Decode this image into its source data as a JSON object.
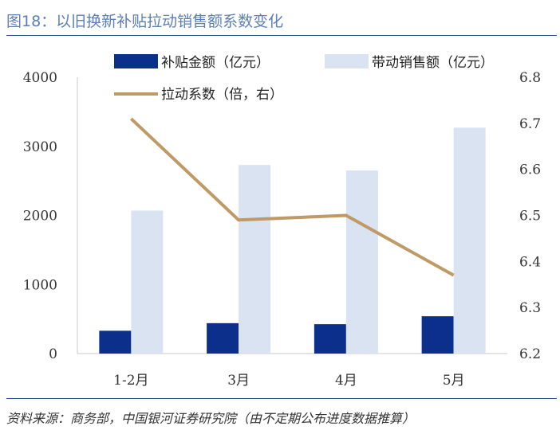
{
  "figure_title": "图18：以旧换新补贴拉动销售额系数变化",
  "source": "资料来源：商务部，中国银河证券研究院（由不定期公布进度数据推算）",
  "colors": {
    "subsidy": "#0c2f8c",
    "sales": "#dae3f2",
    "coefficient": "#bf9a67",
    "title": "#5b7fb8",
    "rule": "#2c4f8a"
  },
  "chart_data": {
    "type": "bar",
    "categories": [
      "1-2月",
      "3月",
      "4月",
      "5月"
    ],
    "series": [
      {
        "name": "补贴金额（亿元）",
        "type": "bar",
        "axis": "left",
        "values": [
          330,
          440,
          425,
          540
        ]
      },
      {
        "name": "带动销售额（亿元）",
        "type": "bar",
        "axis": "left",
        "values": [
          2070,
          2730,
          2650,
          3270
        ]
      },
      {
        "name": "拉动系数（倍，右）",
        "type": "line",
        "axis": "right",
        "values": [
          6.71,
          6.49,
          6.5,
          6.37
        ]
      }
    ],
    "y_left": {
      "min": 0,
      "max": 4000,
      "ticks": [
        0,
        1000,
        2000,
        3000,
        4000
      ]
    },
    "y_right": {
      "min": 6.2,
      "max": 6.8,
      "ticks": [
        "6.2",
        "6.3",
        "6.4",
        "6.5",
        "6.6",
        "6.7",
        "6.8"
      ]
    },
    "legend_placement": "top",
    "grid": false
  }
}
